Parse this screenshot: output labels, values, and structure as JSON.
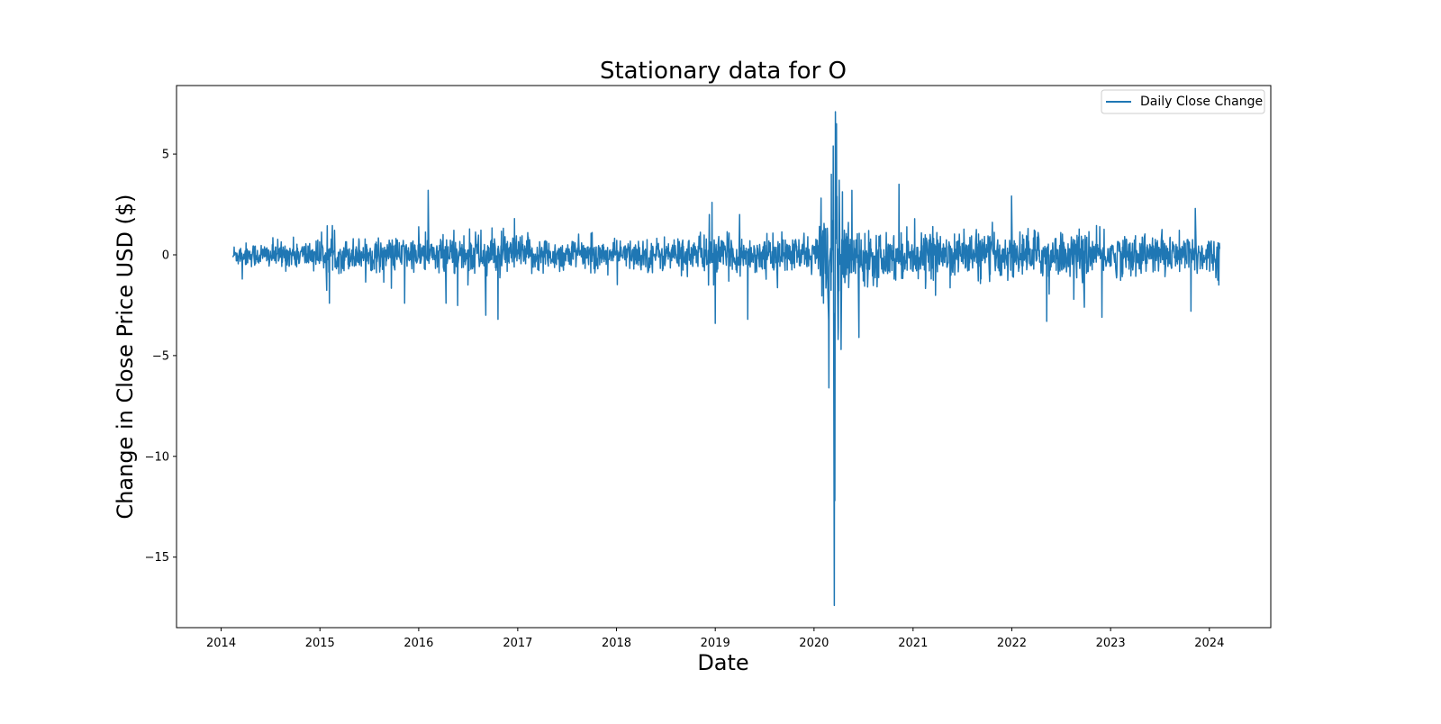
{
  "chart_data": {
    "type": "line",
    "title": "Stationary data for O",
    "xlabel": "Date",
    "ylabel": "Change in Close Price USD ($)",
    "xlim": [
      "2013-07-20",
      "2024-08-15"
    ],
    "ylim": [
      -18.5,
      8.4
    ],
    "x_ticks": [
      "2014",
      "2015",
      "2016",
      "2017",
      "2018",
      "2019",
      "2020",
      "2021",
      "2022",
      "2023",
      "2024"
    ],
    "y_ticks": [
      5,
      0,
      -5,
      -10,
      -15
    ],
    "y_tick_labels": [
      "5",
      "0",
      "−5",
      "−10",
      "−15"
    ],
    "grid": false,
    "legend_position": "top-right",
    "series": [
      {
        "name": "Daily Close Change",
        "color": "#1f77b4",
        "date_range": [
          "2014-02-14",
          "2024-02-08"
        ],
        "base_amplitude": [
          [
            "2014-02-14",
            0.55
          ],
          [
            "2015-01-01",
            0.75
          ],
          [
            "2016-01-01",
            0.85
          ],
          [
            "2016-07-01",
            1.05
          ],
          [
            "2017-01-01",
            0.95
          ],
          [
            "2017-07-01",
            0.75
          ],
          [
            "2018-01-01",
            0.7
          ],
          [
            "2018-10-01",
            0.9
          ],
          [
            "2019-06-01",
            0.85
          ],
          [
            "2020-01-01",
            0.9
          ],
          [
            "2020-02-20",
            2.5
          ],
          [
            "2020-04-01",
            2.6
          ],
          [
            "2020-06-01",
            1.3
          ],
          [
            "2021-01-01",
            1.05
          ],
          [
            "2022-01-01",
            1.15
          ],
          [
            "2023-01-01",
            1.0
          ],
          [
            "2024-02-08",
            0.95
          ]
        ],
        "spikes": [
          {
            "date": "2014-03-20",
            "value": -1.2
          },
          {
            "date": "2015-02-05",
            "value": -2.4
          },
          {
            "date": "2015-11-10",
            "value": -2.4
          },
          {
            "date": "2016-02-05",
            "value": 3.2
          },
          {
            "date": "2016-04-10",
            "value": -2.4
          },
          {
            "date": "2016-09-05",
            "value": -3.0
          },
          {
            "date": "2016-10-20",
            "value": -3.2
          },
          {
            "date": "2016-12-20",
            "value": 1.8
          },
          {
            "date": "2018-12-10",
            "value": 2.0
          },
          {
            "date": "2018-12-20",
            "value": 2.6
          },
          {
            "date": "2019-01-01",
            "value": -3.4
          },
          {
            "date": "2019-04-01",
            "value": 2.0
          },
          {
            "date": "2019-05-01",
            "value": -3.2
          },
          {
            "date": "2020-02-25",
            "value": -6.6
          },
          {
            "date": "2020-03-05",
            "value": 4.0
          },
          {
            "date": "2020-03-12",
            "value": 5.4
          },
          {
            "date": "2020-03-16",
            "value": -17.4
          },
          {
            "date": "2020-03-18",
            "value": -12.2
          },
          {
            "date": "2020-03-20",
            "value": 7.1
          },
          {
            "date": "2020-03-24",
            "value": 6.5
          },
          {
            "date": "2020-03-30",
            "value": -4.2
          },
          {
            "date": "2020-04-03",
            "value": 3.7
          },
          {
            "date": "2020-04-10",
            "value": -4.7
          },
          {
            "date": "2020-05-20",
            "value": 3.2
          },
          {
            "date": "2020-06-15",
            "value": -4.1
          },
          {
            "date": "2020-11-10",
            "value": 3.5
          },
          {
            "date": "2022-05-10",
            "value": -3.3
          },
          {
            "date": "2022-09-25",
            "value": -2.6
          },
          {
            "date": "2022-11-30",
            "value": -3.1
          },
          {
            "date": "2023-10-25",
            "value": -2.8
          },
          {
            "date": "2023-11-10",
            "value": 2.3
          },
          {
            "date": "2024-02-05",
            "value": -1.5
          }
        ]
      }
    ]
  }
}
